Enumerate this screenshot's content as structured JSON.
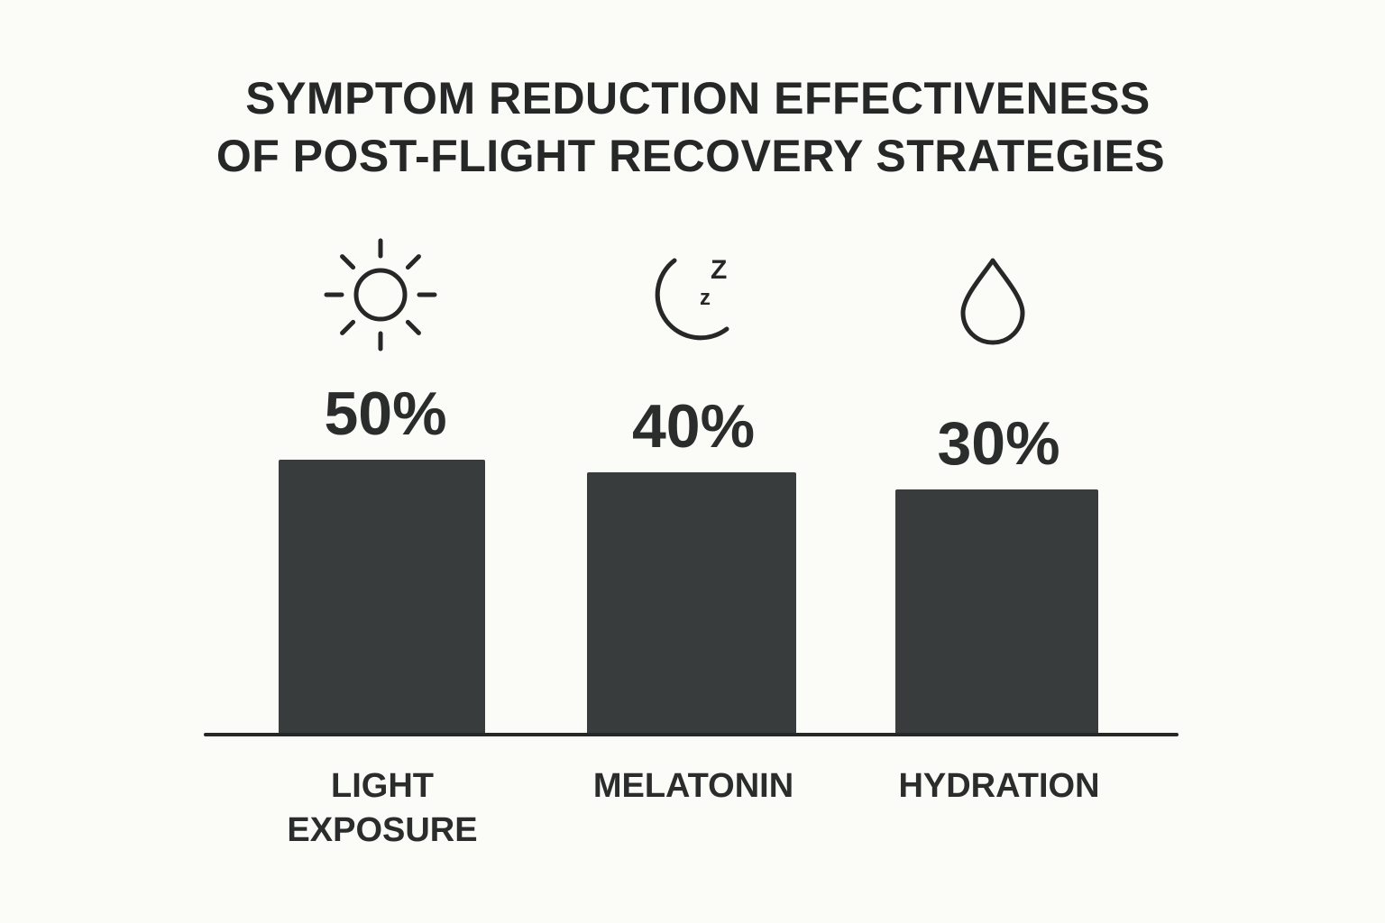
{
  "chart_data": {
    "type": "bar",
    "title_lines": [
      "SYMPTOM REDUCTION EFFECTIVENESS",
      "OF POST-FLIGHT RECOVERY STRATEGIES"
    ],
    "categories": [
      {
        "lines": [
          "LIGHT",
          "EXPOSURE"
        ],
        "icon": "sun-icon"
      },
      {
        "lines": [
          "MELATONIN"
        ],
        "icon": "moon-sleep-icon"
      },
      {
        "lines": [
          "HYDRATION"
        ],
        "icon": "water-drop-icon"
      }
    ],
    "values": [
      50,
      40,
      30
    ],
    "value_labels": [
      "50%",
      "40%",
      "30%"
    ],
    "unit": "%",
    "grid": false,
    "legend": "none",
    "colors": {
      "bar": "#393c3c",
      "baseline": "#262828",
      "background": "#fbfbf8",
      "text": "#2a2c2c"
    }
  }
}
